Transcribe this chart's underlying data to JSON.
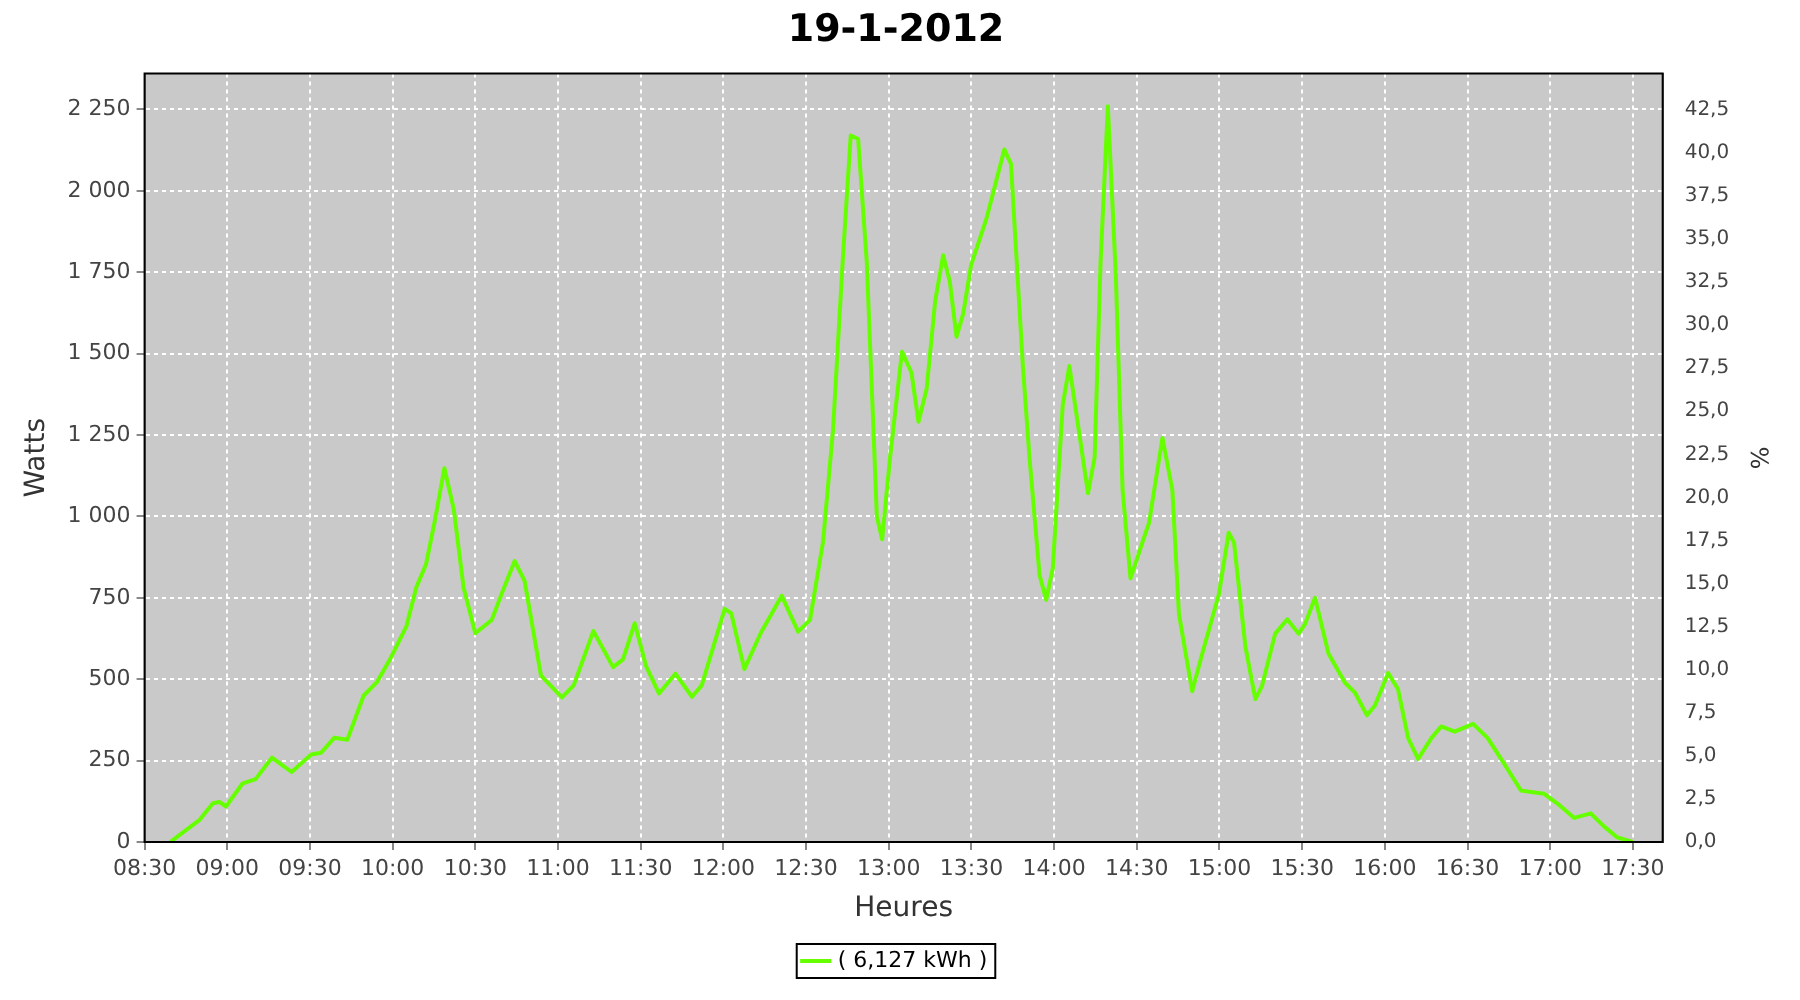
{
  "chart_data": {
    "type": "line",
    "title": "19-1-2012",
    "xlabel": "Heures",
    "ylabel": "Watts",
    "y2label": "%",
    "xlim": [
      8.5,
      17.68
    ],
    "xticks": [
      {
        "value": 8.5,
        "label": "08:30"
      },
      {
        "value": 9,
        "label": "09:00"
      },
      {
        "value": 9.5,
        "label": "09:30"
      },
      {
        "value": 10,
        "label": "10:00"
      },
      {
        "value": 10.5,
        "label": "10:30"
      },
      {
        "value": 11,
        "label": "11:00"
      },
      {
        "value": 11.5,
        "label": "11:30"
      },
      {
        "value": 12,
        "label": "12:00"
      },
      {
        "value": 12.5,
        "label": "12:30"
      },
      {
        "value": 13,
        "label": "13:00"
      },
      {
        "value": 13.5,
        "label": "13:30"
      },
      {
        "value": 14,
        "label": "14:00"
      },
      {
        "value": 14.5,
        "label": "14:30"
      },
      {
        "value": 15,
        "label": "15:00"
      },
      {
        "value": 15.5,
        "label": "15:30"
      },
      {
        "value": 16,
        "label": "16:00"
      },
      {
        "value": 16.5,
        "label": "16:30"
      },
      {
        "value": 17,
        "label": "17:00"
      },
      {
        "value": 17.5,
        "label": "17:30"
      }
    ],
    "ylim": [
      0,
      2360
    ],
    "yticks": [
      0,
      250,
      500,
      750,
      {
        "value": 1000,
        "label": "1 000"
      },
      {
        "value": 1250,
        "label": "1 250"
      },
      {
        "value": 1500,
        "label": "1 500"
      },
      {
        "value": 1750,
        "label": "1 750"
      },
      {
        "value": 2000,
        "label": "2 000"
      },
      {
        "value": 2250,
        "label": "2 250"
      }
    ],
    "y2lim": [
      0,
      44.6
    ],
    "y2ticks": [
      {
        "value": 0,
        "label": "0,0"
      },
      {
        "value": 2.5,
        "label": "2,5"
      },
      {
        "value": 5,
        "label": "5,0"
      },
      {
        "value": 7.5,
        "label": "7,5"
      },
      {
        "value": 10,
        "label": "10,0"
      },
      {
        "value": 12.5,
        "label": "12,5"
      },
      {
        "value": 15,
        "label": "15,0"
      },
      {
        "value": 17.5,
        "label": "17,5"
      },
      {
        "value": 20,
        "label": "20,0"
      },
      {
        "value": 22.5,
        "label": "22,5"
      },
      {
        "value": 25,
        "label": "25,0"
      },
      {
        "value": 27.5,
        "label": "27,5"
      },
      {
        "value": 30,
        "label": "30,0"
      },
      {
        "value": 32.5,
        "label": "32,5"
      },
      {
        "value": 35,
        "label": "35,0"
      },
      {
        "value": 37.5,
        "label": "37,5"
      },
      {
        "value": 40,
        "label": "40,0"
      },
      {
        "value": 42.5,
        "label": "42,5"
      }
    ],
    "grid": true,
    "legend": "bottom",
    "marker": "none",
    "line_style": "solid",
    "series": [
      {
        "name": "( 6,127 kWh )",
        "color": "#66ff00",
        "x": [
          8.655,
          8.754,
          8.833,
          8.913,
          8.952,
          8.992,
          9.091,
          9.171,
          9.27,
          9.389,
          9.508,
          9.567,
          9.647,
          9.726,
          9.825,
          9.905,
          9.984,
          10.083,
          10.143,
          10.202,
          10.254,
          10.313,
          10.369,
          10.429,
          10.5,
          10.599,
          10.659,
          10.738,
          10.798,
          10.897,
          11.024,
          11.095,
          11.214,
          11.333,
          11.393,
          11.464,
          11.532,
          11.611,
          11.71,
          11.81,
          11.869,
          12.008,
          12.048,
          12.127,
          12.226,
          12.353,
          12.452,
          12.524,
          12.603,
          12.663,
          12.722,
          12.77,
          12.815,
          12.867,
          12.908,
          12.928,
          12.96,
          13.008,
          13.08,
          13.137,
          13.18,
          13.229,
          13.281,
          13.329,
          13.369,
          13.41,
          13.45,
          13.498,
          13.59,
          13.699,
          13.739,
          13.811,
          13.851,
          13.912,
          13.952,
          13.992,
          14.052,
          14.092,
          14.133,
          14.205,
          14.245,
          14.281,
          14.325,
          14.373,
          14.414,
          14.462,
          14.534,
          14.574,
          14.655,
          14.715,
          14.755,
          14.835,
          14.896,
          14.996,
          15.056,
          15.088,
          15.157,
          15.217,
          15.257,
          15.337,
          15.41,
          15.478,
          15.518,
          15.578,
          15.659,
          15.759,
          15.819,
          15.892,
          15.94,
          16.02,
          16.08,
          16.141,
          16.201,
          16.281,
          16.341,
          16.422,
          16.534,
          16.622,
          16.723,
          16.823,
          16.964,
          17.044,
          17.145,
          17.245,
          17.325,
          17.406,
          17.498
        ],
        "values": [
          0,
          38,
          68,
          119,
          123,
          109,
          179,
          193,
          259,
          215,
          269,
          274,
          320,
          314,
          450,
          491,
          561,
          662,
          782,
          853,
          983,
          1148,
          1024,
          782,
          641,
          682,
          762,
          863,
          802,
          511,
          444,
          481,
          648,
          537,
          561,
          672,
          541,
          456,
          517,
          446,
          481,
          716,
          702,
          531,
          642,
          756,
          646,
          682,
          923,
          1265,
          1788,
          2170,
          2159,
          1782,
          1261,
          1000,
          930,
          1181,
          1506,
          1442,
          1291,
          1391,
          1662,
          1802,
          1722,
          1552,
          1622,
          1772,
          1913,
          2127,
          2083,
          1462,
          1181,
          820,
          744,
          840,
          1341,
          1462,
          1321,
          1071,
          1181,
          1782,
          2260,
          1742,
          1081,
          810,
          920,
          980,
          1241,
          1081,
          700,
          463,
          579,
          760,
          950,
          920,
          599,
          439,
          479,
          640,
          684,
          640,
          670,
          750,
          579,
          489,
          459,
          389,
          419,
          519,
          469,
          319,
          255,
          319,
          355,
          339,
          363,
          319,
          239,
          158,
          148,
          118,
          74,
          88,
          48,
          14,
          0
        ]
      }
    ]
  }
}
